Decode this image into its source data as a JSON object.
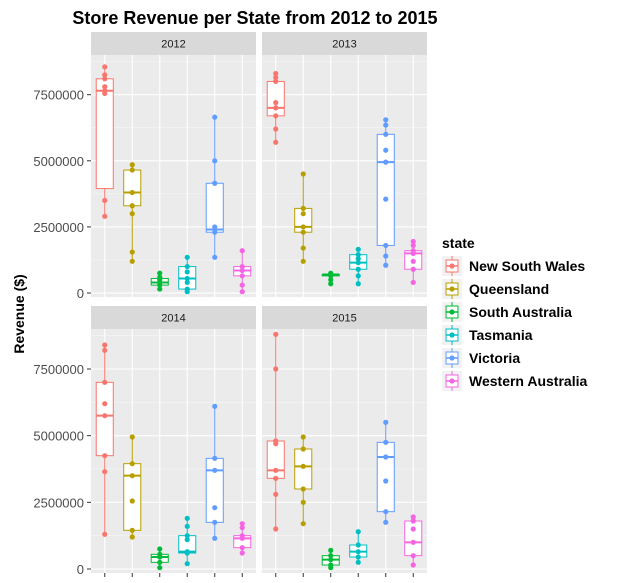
{
  "chart_data": {
    "type": "boxplot",
    "title": "Store Revenue per State from 2012 to 2015",
    "ylabel": "Revenue ($)",
    "xlabel": "",
    "legend_title": "state",
    "legend_position": "right",
    "grid": true,
    "ylim": [
      -150000,
      9000000
    ],
    "yticks": [
      0,
      2500000,
      5000000,
      7500000
    ],
    "ytick_labels": [
      "0",
      "2500000",
      "5000000",
      "7500000"
    ],
    "colors": {
      "New South Wales": "#F8766D",
      "Queensland": "#B79F00",
      "South Australia": "#00BA38",
      "Tasmania": "#00BFC4",
      "Victoria": "#619CFF",
      "Western Australia": "#F564E3"
    },
    "states": [
      "New South Wales",
      "Queensland",
      "South Australia",
      "Tasmania",
      "Victoria",
      "Western Australia"
    ],
    "panels": [
      {
        "label": "2012",
        "boxes": [
          {
            "state": "New South Wales",
            "min": 2900000,
            "q1": 3950000,
            "median": 7650000,
            "q3": 8100000,
            "max": 8550000,
            "points": [
              2900000,
              3500000,
              7550000,
              7650000,
              7800000,
              8100000,
              8250000,
              8550000
            ]
          },
          {
            "state": "Queensland",
            "min": 1200000,
            "q1": 3300000,
            "median": 3800000,
            "q3": 4650000,
            "max": 4850000,
            "points": [
              1200000,
              1550000,
              3000000,
              3300000,
              3800000,
              4650000,
              4850000
            ]
          },
          {
            "state": "South Australia",
            "min": 150000,
            "q1": 300000,
            "median": 400000,
            "q3": 550000,
            "max": 750000,
            "points": [
              150000,
              300000,
              400000,
              500000,
              600000,
              750000
            ]
          },
          {
            "state": "Tasmania",
            "min": 50000,
            "q1": 150000,
            "median": 550000,
            "q3": 1000000,
            "max": 1350000,
            "points": [
              50000,
              150000,
              400000,
              550000,
              800000,
              1000000,
              1350000
            ]
          },
          {
            "state": "Victoria",
            "min": 1350000,
            "q1": 2300000,
            "median": 2400000,
            "q3": 4150000,
            "max": 6650000,
            "points": [
              1350000,
              2300000,
              2400000,
              2500000,
              4150000,
              5000000,
              6650000
            ]
          },
          {
            "state": "Western Australia",
            "min": 50000,
            "q1": 650000,
            "median": 850000,
            "q3": 1000000,
            "max": 1600000,
            "points": [
              50000,
              300000,
              650000,
              850000,
              1000000,
              1600000
            ]
          }
        ]
      },
      {
        "label": "2013",
        "boxes": [
          {
            "state": "New South Wales",
            "min": 5700000,
            "q1": 6700000,
            "median": 7000000,
            "q3": 8000000,
            "max": 8300000,
            "points": [
              5700000,
              6200000,
              6700000,
              7000000,
              7200000,
              8000000,
              8150000,
              8300000
            ]
          },
          {
            "state": "Queensland",
            "min": 1200000,
            "q1": 2300000,
            "median": 2500000,
            "q3": 3200000,
            "max": 4500000,
            "points": [
              1200000,
              1700000,
              2300000,
              2500000,
              3000000,
              3200000,
              4500000
            ]
          },
          {
            "state": "South Australia",
            "min": 350000,
            "q1": 650000,
            "median": 700000,
            "q3": 700000,
            "max": 750000,
            "points": [
              350000,
              500000,
              650000,
              700000,
              700000,
              750000
            ]
          },
          {
            "state": "Tasmania",
            "min": 350000,
            "q1": 900000,
            "median": 1150000,
            "q3": 1450000,
            "max": 1650000,
            "points": [
              350000,
              650000,
              900000,
              1150000,
              1300000,
              1450000,
              1650000
            ]
          },
          {
            "state": "Victoria",
            "min": 1050000,
            "q1": 1800000,
            "median": 4950000,
            "q3": 6000000,
            "max": 6550000,
            "points": [
              1050000,
              1400000,
              1800000,
              3550000,
              4950000,
              5400000,
              6000000,
              6350000,
              6550000
            ]
          },
          {
            "state": "Western Australia",
            "min": 400000,
            "q1": 900000,
            "median": 1500000,
            "q3": 1600000,
            "max": 1950000,
            "points": [
              400000,
              900000,
              1200000,
              1500000,
              1600000,
              1800000,
              1950000
            ]
          }
        ]
      },
      {
        "label": "2014",
        "boxes": [
          {
            "state": "New South Wales",
            "min": 1300000,
            "q1": 4250000,
            "median": 5750000,
            "q3": 7000000,
            "max": 8400000,
            "points": [
              1300000,
              3650000,
              4250000,
              5750000,
              6200000,
              7000000,
              8200000,
              8400000
            ]
          },
          {
            "state": "Queensland",
            "min": 1200000,
            "q1": 1450000,
            "median": 3500000,
            "q3": 3950000,
            "max": 4950000,
            "points": [
              1200000,
              1450000,
              2550000,
              3500000,
              3950000,
              4950000
            ]
          },
          {
            "state": "South Australia",
            "min": 50000,
            "q1": 250000,
            "median": 450000,
            "q3": 550000,
            "max": 750000,
            "points": [
              50000,
              250000,
              450000,
              550000,
              750000
            ]
          },
          {
            "state": "Tasmania",
            "min": 200000,
            "q1": 600000,
            "median": 650000,
            "q3": 1250000,
            "max": 1900000,
            "points": [
              200000,
              600000,
              650000,
              1100000,
              1250000,
              1600000,
              1900000
            ]
          },
          {
            "state": "Victoria",
            "min": 1150000,
            "q1": 1750000,
            "median": 3700000,
            "q3": 4150000,
            "max": 6100000,
            "points": [
              1150000,
              1750000,
              2300000,
              3700000,
              4150000,
              6100000
            ]
          },
          {
            "state": "Western Australia",
            "min": 600000,
            "q1": 800000,
            "median": 1150000,
            "q3": 1250000,
            "max": 1700000,
            "points": [
              600000,
              800000,
              1150000,
              1250000,
              1550000,
              1700000
            ]
          }
        ]
      },
      {
        "label": "2015",
        "boxes": [
          {
            "state": "New South Wales",
            "min": 1500000,
            "q1": 3400000,
            "median": 3700000,
            "q3": 4800000,
            "max": 8800000,
            "points": [
              1500000,
              2800000,
              3400000,
              3700000,
              4700000,
              4800000,
              7500000,
              8800000
            ]
          },
          {
            "state": "Queensland",
            "min": 1700000,
            "q1": 3000000,
            "median": 3850000,
            "q3": 4500000,
            "max": 4950000,
            "points": [
              1700000,
              2500000,
              3000000,
              3850000,
              4500000,
              4950000
            ]
          },
          {
            "state": "South Australia",
            "min": 50000,
            "q1": 150000,
            "median": 350000,
            "q3": 500000,
            "max": 700000,
            "points": [
              50000,
              150000,
              350000,
              500000,
              700000
            ]
          },
          {
            "state": "Tasmania",
            "min": 250000,
            "q1": 450000,
            "median": 650000,
            "q3": 900000,
            "max": 1400000,
            "points": [
              250000,
              450000,
              650000,
              900000,
              1400000
            ]
          },
          {
            "state": "Victoria",
            "min": 1750000,
            "q1": 2150000,
            "median": 4200000,
            "q3": 4750000,
            "max": 5500000,
            "points": [
              1750000,
              2150000,
              3300000,
              4200000,
              4750000,
              5500000
            ]
          },
          {
            "state": "Western Australia",
            "min": 150000,
            "q1": 500000,
            "median": 1000000,
            "q3": 1800000,
            "max": 1950000,
            "points": [
              150000,
              500000,
              1000000,
              1500000,
              1800000,
              1950000
            ]
          }
        ]
      }
    ]
  }
}
